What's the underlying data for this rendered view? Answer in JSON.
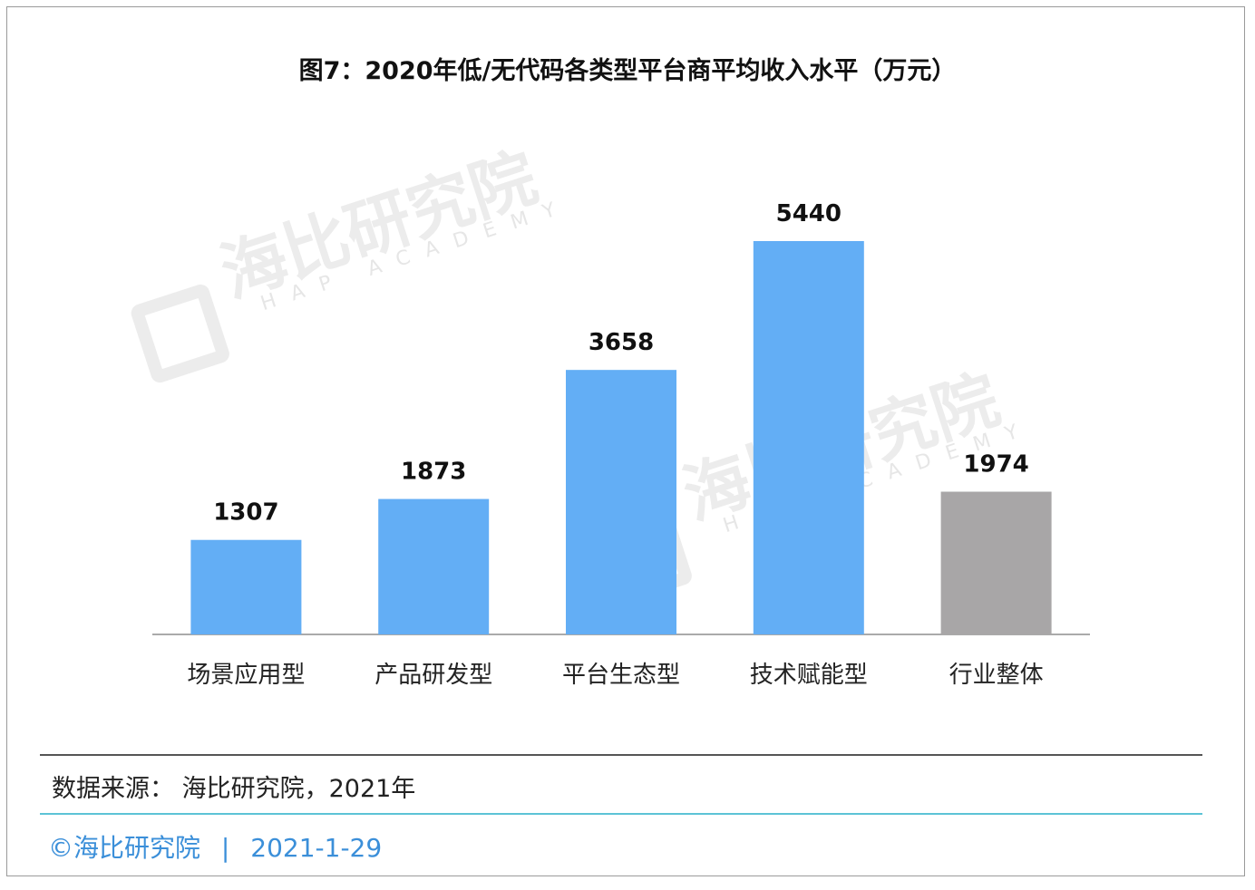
{
  "title": "图7：2020年低/无代码各类型平台商平均收入水平（万元）",
  "source_label": "数据来源：  海比研究院，2021年",
  "footer": {
    "org": "©海比研究院",
    "separator": "|",
    "date": "2021-1-29"
  },
  "watermark": {
    "cn": "海比研究院",
    "en": "HAP ACADEMY"
  },
  "colors": {
    "bar_blue": "#63aef5",
    "bar_gray": "#a8a6a7",
    "axis": "#aaaaaa",
    "footer_accent": "#3b8fd9",
    "footer_rule": "#5cc3d6"
  },
  "chart_data": {
    "type": "bar",
    "title": "图7：2020年低/无代码各类型平台商平均收入水平（万元）",
    "categories": [
      "场景应用型",
      "产品研发型",
      "平台生态型",
      "技术赋能型",
      "行业整体"
    ],
    "values": [
      1307,
      1873,
      3658,
      5440,
      1974
    ],
    "bar_colors": [
      "#63aef5",
      "#63aef5",
      "#63aef5",
      "#63aef5",
      "#a8a6a7"
    ],
    "xlabel": "",
    "ylabel": "",
    "ylim": [
      0,
      5440
    ],
    "grid": false,
    "data_labels": true
  }
}
